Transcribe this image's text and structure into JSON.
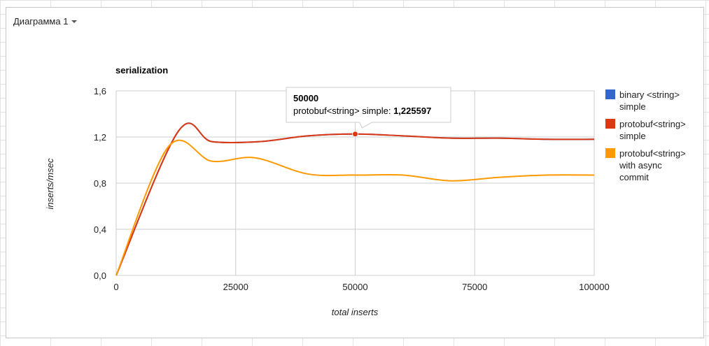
{
  "chart_menu": {
    "label": "Диаграмма 1"
  },
  "chart_data": {
    "type": "line",
    "title": "serialization",
    "xlabel": "total inserts",
    "ylabel": "inserts/msec",
    "xlim": [
      0,
      100000
    ],
    "ylim": [
      0,
      1.6
    ],
    "x_ticks": [
      0,
      25000,
      50000,
      75000,
      100000
    ],
    "x_tick_labels": [
      "0",
      "25000",
      "50000",
      "75000",
      "100000"
    ],
    "y_ticks": [
      0,
      0.4,
      0.8,
      1.2,
      1.6
    ],
    "y_tick_labels": [
      "0,0",
      "0,4",
      "0,8",
      "1,2",
      "1,6"
    ],
    "grid": true,
    "legend_position": "right",
    "series": [
      {
        "name": "binary <string> simple",
        "color": "#3366cc",
        "x": [
          0,
          13000,
          20000,
          30000,
          40000,
          50000,
          60000,
          70000,
          80000,
          90000,
          100000
        ],
        "y": [
          0,
          1.25,
          1.16,
          1.16,
          1.21,
          1.225597,
          1.21,
          1.19,
          1.19,
          1.18,
          1.18
        ]
      },
      {
        "name": "protobuf<string> simple",
        "color": "#dc3912",
        "x": [
          0,
          13000,
          20000,
          30000,
          40000,
          50000,
          60000,
          70000,
          80000,
          90000,
          100000
        ],
        "y": [
          0,
          1.25,
          1.16,
          1.16,
          1.21,
          1.225597,
          1.21,
          1.19,
          1.19,
          1.18,
          1.18
        ]
      },
      {
        "name": "protobuf<string> with async commit",
        "color": "#ff9900",
        "x": [
          0,
          11000,
          20000,
          29000,
          40000,
          50000,
          60000,
          70000,
          80000,
          90000,
          100000
        ],
        "y": [
          0,
          1.12,
          0.99,
          1.02,
          0.88,
          0.87,
          0.87,
          0.82,
          0.85,
          0.87,
          0.87
        ]
      }
    ],
    "legend_lines": [
      [
        "binary <string>",
        "simple"
      ],
      [
        "protobuf<string>",
        "simple"
      ],
      [
        "protobuf<string>",
        "with async",
        "commit"
      ]
    ],
    "tooltip": {
      "series_index": 1,
      "x": 50000,
      "y": 1.225597,
      "title": "50000",
      "series_label": "protobuf<string> simple:",
      "value_label": "1,225597"
    }
  }
}
